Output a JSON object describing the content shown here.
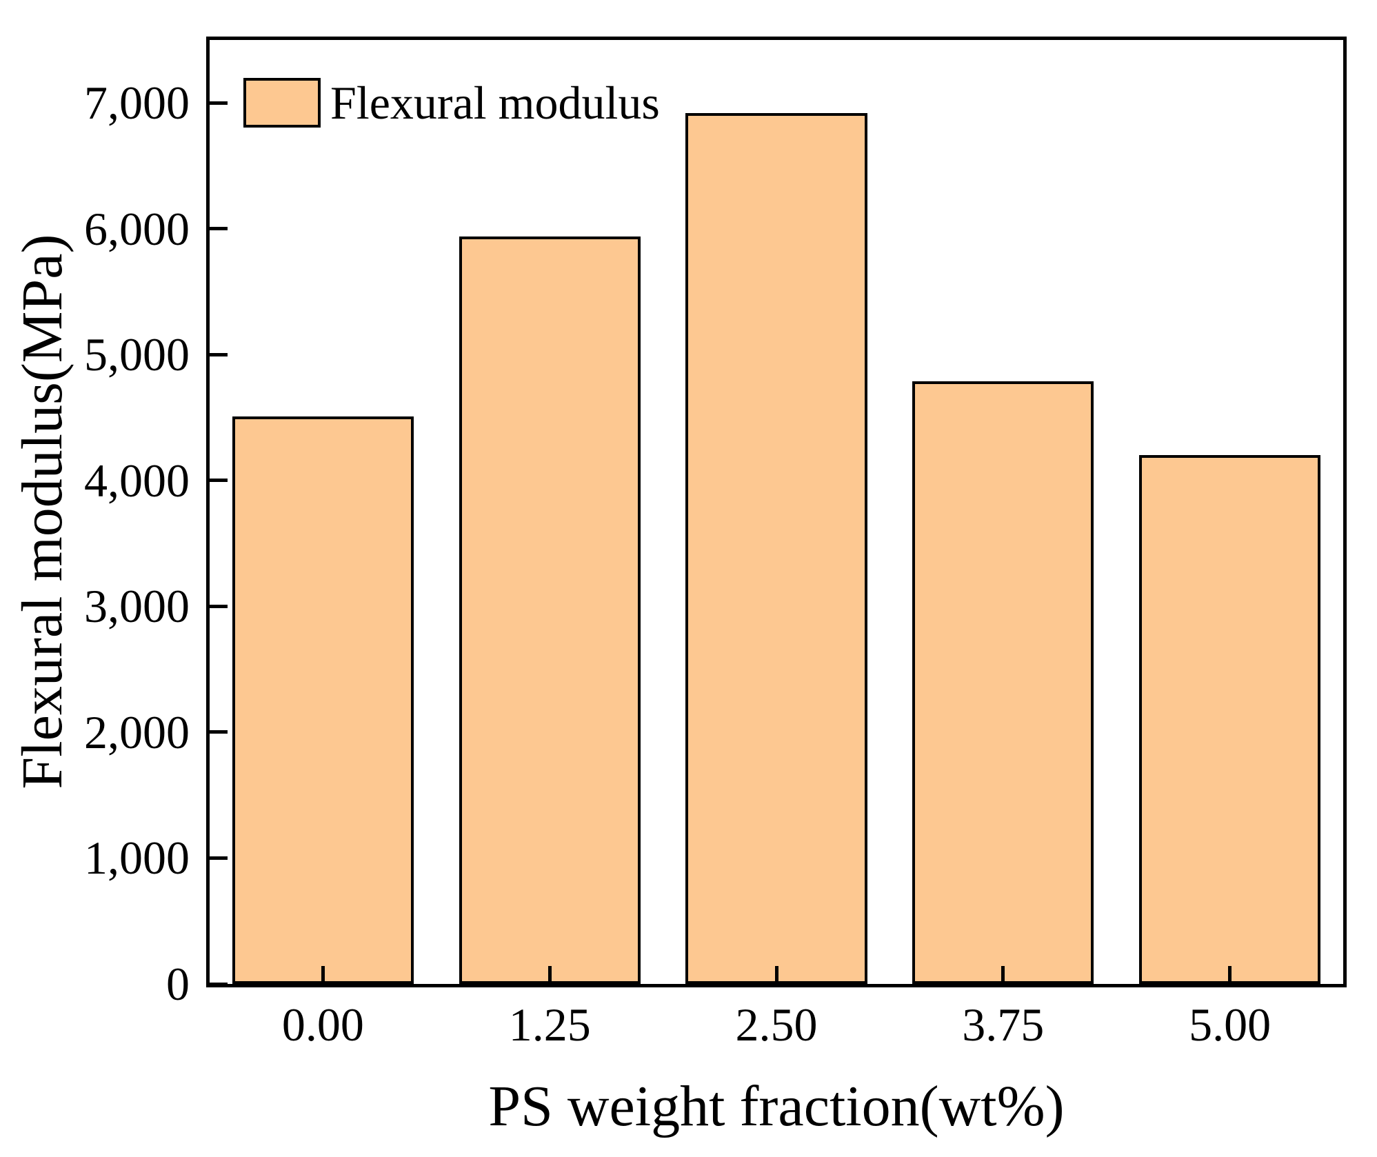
{
  "chart_data": {
    "type": "bar",
    "title": "",
    "categories": [
      "0.00",
      "1.25",
      "2.50",
      "3.75",
      "5.00"
    ],
    "values": [
      4510,
      5940,
      6920,
      4790,
      4200
    ],
    "series_name": "Flexural modulus",
    "xlabel": "PS weight fraction(wt%)",
    "ylabel": "Flexural modulus(MPa)",
    "ylim": [
      0,
      7500
    ],
    "yticks": [
      0,
      1000,
      2000,
      3000,
      4000,
      5000,
      6000,
      7000
    ],
    "ytick_labels": [
      "0",
      "1,000",
      "2,000",
      "3,000",
      "4,000",
      "5,000",
      "6,000",
      "7,000"
    ],
    "bar_width_fraction": 0.8,
    "bar_color": "#FDC891",
    "bar_edge_color": "#000000",
    "tick_direction": "in",
    "grid": false,
    "legend": {
      "label": "Flexural modulus",
      "position": "upper-left"
    }
  }
}
